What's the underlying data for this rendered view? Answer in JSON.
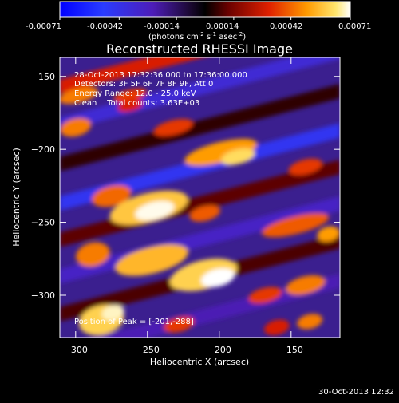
{
  "colorbar": {
    "tick_labels": [
      "-0.00071",
      "-0.00042",
      "-0.00014",
      "0.00014",
      "0.00042",
      "0.00071"
    ],
    "units_main": "(photons cm",
    "units_exp1": "-2",
    "units_mid": " s",
    "units_exp2": "-1",
    "units_mid2": " asec",
    "units_exp3": "-2",
    "units_end": ")"
  },
  "figure": {
    "title": "Reconstructed RHESSI Image",
    "annotation_lines": [
      "28-Oct-2013 17:32:36.000 to 17:36:00.000",
      "Detectors: 3F 5F 6F 7F 8F 9F, Att 0",
      "Energy Range: 12.0 - 25.0 keV",
      "Clean    Total counts: 3.63E+03"
    ],
    "peak_label": "Position of Peak = [-201,-288]",
    "timestamp": "30-Oct-2013 12:32"
  },
  "chart_data": {
    "type": "heatmap",
    "title": "Reconstructed RHESSI Image",
    "xlabel": "Heliocentric X (arcsec)",
    "ylabel": "Heliocentric Y (arcsec)",
    "xlim": [
      -311,
      -116
    ],
    "ylim": [
      -329,
      -137
    ],
    "x_ticks": [
      -300,
      -250,
      -200,
      -150
    ],
    "y_ticks": [
      -150,
      -200,
      -250,
      -300
    ],
    "x_tick_labels": [
      "−300",
      "−250",
      "−200",
      "−150"
    ],
    "y_tick_labels": [
      "−150",
      "−200",
      "−250",
      "−300"
    ],
    "colorbar_range": [
      -0.00071,
      0.00071
    ],
    "peak": [
      -201,
      -288
    ],
    "bands": [
      {
        "x0": -311,
        "y0": -157,
        "x1": -116,
        "y1": -108,
        "value": 0.0003
      },
      {
        "x0": -311,
        "y0": -183,
        "x1": -116,
        "y1": -133,
        "value": -0.00035
      },
      {
        "x0": -311,
        "y0": -210,
        "x1": -116,
        "y1": -160,
        "value": 5e-05
      },
      {
        "x0": -311,
        "y0": -237,
        "x1": -116,
        "y1": -187,
        "value": -0.00045
      },
      {
        "x0": -311,
        "y0": -262,
        "x1": -116,
        "y1": -212,
        "value": 0.0001
      },
      {
        "x0": -311,
        "y0": -287,
        "x1": -116,
        "y1": -237,
        "value": -0.0003
      },
      {
        "x0": -311,
        "y0": -313,
        "x1": -116,
        "y1": -263,
        "value": 8e-05
      },
      {
        "x0": -311,
        "y0": -340,
        "x1": -116,
        "y1": -290,
        "value": -0.00025
      }
    ],
    "blobs": [
      {
        "x": -298,
        "y": -163,
        "rx": 14,
        "ry": 5,
        "value": 0.00045
      },
      {
        "x": -262,
        "y": -163,
        "rx": 12,
        "ry": 4,
        "value": 0.00035
      },
      {
        "x": -262,
        "y": -170,
        "rx": 9,
        "ry": 4,
        "value": 0.0003
      },
      {
        "x": -300,
        "y": -185,
        "rx": 11,
        "ry": 6,
        "value": 0.00045
      },
      {
        "x": -232,
        "y": -185,
        "rx": 14,
        "ry": 5,
        "value": 0.00035
      },
      {
        "x": -199,
        "y": -202,
        "rx": 26,
        "ry": 7,
        "value": 0.0005
      },
      {
        "x": -187,
        "y": -205,
        "rx": 12,
        "ry": 5,
        "value": 0.00062
      },
      {
        "x": -140,
        "y": -212,
        "rx": 12,
        "ry": 5,
        "value": 0.00035
      },
      {
        "x": -275,
        "y": -232,
        "rx": 14,
        "ry": 7,
        "value": 0.00042
      },
      {
        "x": -249,
        "y": -240,
        "rx": 28,
        "ry": 10,
        "value": 0.00058
      },
      {
        "x": -245,
        "y": -242,
        "rx": 14,
        "ry": 6,
        "value": 0.0007
      },
      {
        "x": -210,
        "y": -244,
        "rx": 11,
        "ry": 5,
        "value": 0.0004
      },
      {
        "x": -147,
        "y": -252,
        "rx": 24,
        "ry": 6,
        "value": 0.0004
      },
      {
        "x": -124,
        "y": -258,
        "rx": 8,
        "ry": 5,
        "value": 0.0005
      },
      {
        "x": -288,
        "y": -272,
        "rx": 12,
        "ry": 8,
        "value": 0.00045
      },
      {
        "x": -247,
        "y": -276,
        "rx": 26,
        "ry": 9,
        "value": 0.00055
      },
      {
        "x": -211,
        "y": -286,
        "rx": 24,
        "ry": 10,
        "value": 0.0006
      },
      {
        "x": -201,
        "y": -288,
        "rx": 12,
        "ry": 6,
        "value": 0.00071
      },
      {
        "x": -168,
        "y": -300,
        "rx": 12,
        "ry": 5,
        "value": 0.00035
      },
      {
        "x": -140,
        "y": -293,
        "rx": 14,
        "ry": 6,
        "value": 0.00045
      },
      {
        "x": -282,
        "y": -317,
        "rx": 16,
        "ry": 10,
        "value": 0.0006
      },
      {
        "x": -274,
        "y": -312,
        "rx": 8,
        "ry": 5,
        "value": 0.00068
      },
      {
        "x": -228,
        "y": -320,
        "rx": 11,
        "ry": 5,
        "value": 0.00035
      },
      {
        "x": -160,
        "y": -322,
        "rx": 9,
        "ry": 5,
        "value": 0.0003
      },
      {
        "x": -137,
        "y": -318,
        "rx": 9,
        "ry": 5,
        "value": 0.00045
      }
    ]
  }
}
